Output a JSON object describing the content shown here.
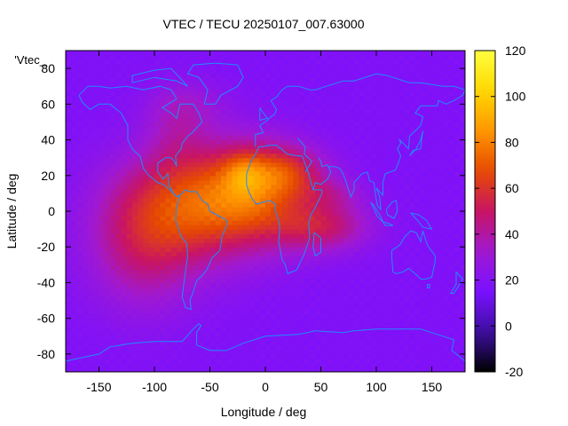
{
  "chart_data": {
    "type": "heatmap",
    "title": "VTEC / TECU 20250107_007.63000",
    "xlabel": "Longitude / deg",
    "ylabel": "Latitude / deg",
    "legend_label": "'Vtec_",
    "xlim": [
      -180,
      180
    ],
    "ylim": [
      -90,
      90
    ],
    "xticks": [
      -150,
      -100,
      -50,
      0,
      50,
      100,
      150
    ],
    "yticks": [
      -80,
      -60,
      -40,
      -20,
      0,
      20,
      40,
      60,
      80
    ],
    "colorbar": {
      "range": [
        -20,
        120
      ],
      "ticks": [
        -20,
        0,
        20,
        40,
        60,
        80,
        100,
        120
      ],
      "palette": [
        "#000000",
        "#3d0fa0",
        "#7a10ff",
        "#a019d2",
        "#c81464",
        "#e64a00",
        "#ff9600",
        "#ffd800",
        "#ffff40"
      ]
    },
    "field": {
      "background_tec": 18,
      "blobs": [
        {
          "lon": -55,
          "lat": 5,
          "sdlon": 50,
          "sdlat": 22,
          "amp": 48
        },
        {
          "lon": -10,
          "lat": 12,
          "sdlon": 30,
          "sdlat": 18,
          "amp": 26
        },
        {
          "lon": 20,
          "lat": 22,
          "sdlon": 25,
          "sdlat": 10,
          "amp": 28
        },
        {
          "lon": -20,
          "lat": 22,
          "sdlon": 12,
          "sdlat": 8,
          "amp": 16
        },
        {
          "lon": 50,
          "lat": -8,
          "sdlon": 30,
          "sdlat": 10,
          "amp": 30
        },
        {
          "lon": 60,
          "lat": 10,
          "sdlon": 20,
          "sdlat": 6,
          "amp": 12
        },
        {
          "lon": -110,
          "lat": -20,
          "sdlon": 35,
          "sdlat": 25,
          "amp": 24
        },
        {
          "lon": -80,
          "lat": 45,
          "sdlon": 20,
          "sdlat": 15,
          "amp": 10
        },
        {
          "lon": -70,
          "lat": 60,
          "sdlon": 25,
          "sdlat": 10,
          "amp": 10
        }
      ]
    },
    "coastlines": [
      [
        [
          -168,
          65
        ],
        [
          -160,
          70
        ],
        [
          -150,
          70
        ],
        [
          -140,
          69
        ],
        [
          -125,
          70
        ],
        [
          -110,
          68
        ],
        [
          -95,
          70
        ],
        [
          -85,
          68
        ],
        [
          -80,
          63
        ],
        [
          -93,
          58
        ],
        [
          -85,
          55
        ],
        [
          -80,
          52
        ],
        [
          -77,
          60
        ],
        [
          -65,
          60
        ],
        [
          -60,
          55
        ],
        [
          -57,
          50
        ],
        [
          -66,
          44
        ],
        [
          -70,
          42
        ],
        [
          -75,
          38
        ],
        [
          -76,
          35
        ],
        [
          -81,
          31
        ],
        [
          -80,
          25
        ],
        [
          -82,
          28
        ],
        [
          -85,
          30
        ],
        [
          -90,
          30
        ],
        [
          -97,
          27
        ],
        [
          -97,
          22
        ],
        [
          -92,
          18
        ],
        [
          -88,
          21
        ],
        [
          -87,
          15
        ],
        [
          -83,
          10
        ],
        [
          -80,
          8
        ],
        [
          -77,
          9
        ],
        [
          -78,
          7
        ],
        [
          -80,
          2
        ],
        [
          -81,
          -5
        ],
        [
          -76,
          -14
        ],
        [
          -71,
          -18
        ],
        [
          -70,
          -25
        ],
        [
          -73,
          -38
        ],
        [
          -75,
          -48
        ],
        [
          -72,
          -54
        ],
        [
          -67,
          -55
        ],
        [
          -68,
          -50
        ],
        [
          -65,
          -45
        ],
        [
          -62,
          -39
        ],
        [
          -57,
          -36
        ],
        [
          -53,
          -33
        ],
        [
          -48,
          -26
        ],
        [
          -41,
          -22
        ],
        [
          -39,
          -14
        ],
        [
          -35,
          -8
        ],
        [
          -35,
          -5
        ],
        [
          -44,
          -2
        ],
        [
          -50,
          0
        ],
        [
          -52,
          4
        ],
        [
          -57,
          6
        ],
        [
          -62,
          11
        ],
        [
          -68,
          11
        ],
        [
          -72,
          12
        ],
        [
          -77,
          9
        ]
      ],
      [
        [
          -80,
          8
        ],
        [
          -86,
          12
        ],
        [
          -92,
          15
        ],
        [
          -97,
          16
        ],
        [
          -105,
          20
        ],
        [
          -110,
          24
        ],
        [
          -113,
          31
        ],
        [
          -117,
          33
        ],
        [
          -120,
          35
        ],
        [
          -124,
          40
        ],
        [
          -124,
          48
        ],
        [
          -130,
          55
        ],
        [
          -140,
          60
        ],
        [
          -150,
          60
        ],
        [
          -158,
          57
        ],
        [
          -165,
          61
        ],
        [
          -168,
          65
        ]
      ],
      [
        [
          -55,
          60
        ],
        [
          -45,
          60
        ],
        [
          -40,
          65
        ],
        [
          -25,
          70
        ],
        [
          -20,
          75
        ],
        [
          -25,
          82
        ],
        [
          -45,
          83
        ],
        [
          -65,
          82
        ],
        [
          -70,
          77
        ],
        [
          -60,
          75
        ],
        [
          -52,
          68
        ],
        [
          -55,
          60
        ]
      ],
      [
        [
          -120,
          72
        ],
        [
          -100,
          75
        ],
        [
          -80,
          73
        ],
        [
          -70,
          70
        ],
        [
          -85,
          80
        ],
        [
          -100,
          79
        ],
        [
          -120,
          76
        ],
        [
          -120,
          72
        ]
      ],
      [
        [
          -17,
          15
        ],
        [
          -17,
          21
        ],
        [
          -13,
          28
        ],
        [
          -9,
          32
        ],
        [
          -6,
          36
        ],
        [
          5,
          37
        ],
        [
          10,
          37
        ],
        [
          20,
          32
        ],
        [
          30,
          31
        ],
        [
          33,
          31
        ],
        [
          35,
          28
        ],
        [
          39,
          21
        ],
        [
          43,
          12
        ],
        [
          51,
          12
        ],
        [
          51,
          10
        ],
        [
          45,
          2
        ],
        [
          41,
          -2
        ],
        [
          39,
          -7
        ],
        [
          40,
          -15
        ],
        [
          35,
          -24
        ],
        [
          32,
          -28
        ],
        [
          28,
          -33
        ],
        [
          20,
          -35
        ],
        [
          18,
          -30
        ],
        [
          15,
          -27
        ],
        [
          12,
          -17
        ],
        [
          13,
          -10
        ],
        [
          12,
          -5
        ],
        [
          9,
          0
        ],
        [
          9,
          4
        ],
        [
          4,
          6
        ],
        [
          -2,
          5
        ],
        [
          -8,
          4
        ],
        [
          -12,
          7
        ],
        [
          -15,
          11
        ],
        [
          -17,
          15
        ]
      ],
      [
        [
          -9,
          36
        ],
        [
          -9,
          43
        ],
        [
          -2,
          44
        ],
        [
          -5,
          48
        ],
        [
          2,
          51
        ],
        [
          5,
          53
        ],
        [
          8,
          54
        ],
        [
          10,
          57
        ],
        [
          5,
          62
        ],
        [
          10,
          64
        ],
        [
          15,
          68
        ],
        [
          20,
          70
        ],
        [
          30,
          70
        ],
        [
          40,
          68
        ],
        [
          45,
          68
        ],
        [
          55,
          70
        ],
        [
          70,
          73
        ],
        [
          80,
          73
        ],
        [
          100,
          77
        ],
        [
          110,
          76
        ],
        [
          130,
          72
        ],
        [
          140,
          72
        ],
        [
          160,
          70
        ],
        [
          170,
          70
        ],
        [
          180,
          68
        ]
      ],
      [
        [
          -5,
          58
        ],
        [
          -5,
          51
        ],
        [
          2,
          52
        ],
        [
          -3,
          56
        ],
        [
          -5,
          58
        ]
      ],
      [
        [
          29,
          41
        ],
        [
          36,
          36
        ],
        [
          35,
          32
        ],
        [
          42,
          28
        ],
        [
          36,
          22
        ]
      ],
      [
        [
          43,
          12
        ],
        [
          45,
          16
        ],
        [
          50,
          15
        ],
        [
          56,
          18
        ],
        [
          59,
          22
        ],
        [
          56,
          26
        ],
        [
          51,
          25
        ],
        [
          50,
          28
        ],
        [
          48,
          30
        ]
      ],
      [
        [
          57,
          25
        ],
        [
          62,
          25
        ],
        [
          67,
          24
        ],
        [
          70,
          21
        ],
        [
          73,
          16
        ],
        [
          77,
          8
        ],
        [
          80,
          12
        ],
        [
          80,
          16
        ],
        [
          87,
          21
        ],
        [
          92,
          22
        ],
        [
          94,
          17
        ],
        [
          98,
          16
        ],
        [
          99,
          10
        ],
        [
          101,
          3
        ],
        [
          104,
          1
        ],
        [
          103,
          8
        ],
        [
          100,
          13
        ],
        [
          106,
          9
        ],
        [
          106,
          16
        ],
        [
          108,
          21
        ],
        [
          117,
          23
        ],
        [
          120,
          27
        ],
        [
          122,
          31
        ],
        [
          119,
          35
        ],
        [
          122,
          38
        ],
        [
          121,
          40
        ],
        [
          126,
          37
        ],
        [
          129,
          35
        ],
        [
          130,
          42
        ],
        [
          140,
          48
        ],
        [
          142,
          53
        ],
        [
          135,
          55
        ],
        [
          140,
          59
        ],
        [
          155,
          59
        ],
        [
          156,
          62
        ],
        [
          163,
          60
        ],
        [
          170,
          62
        ],
        [
          178,
          65
        ],
        [
          180,
          68
        ]
      ],
      [
        [
          44,
          -12
        ],
        [
          50,
          -15
        ],
        [
          50,
          -23
        ],
        [
          45,
          -25
        ],
        [
          43,
          -20
        ],
        [
          44,
          -12
        ]
      ],
      [
        [
          95,
          5
        ],
        [
          98,
          3
        ],
        [
          104,
          -3
        ],
        [
          106,
          -6
        ],
        [
          101,
          -3
        ],
        [
          95,
          5
        ]
      ],
      [
        [
          106,
          -6
        ],
        [
          112,
          -7
        ],
        [
          115,
          -8
        ],
        [
          108,
          -8
        ],
        [
          106,
          -6
        ]
      ],
      [
        [
          109,
          1
        ],
        [
          114,
          5
        ],
        [
          118,
          6
        ],
        [
          119,
          0
        ],
        [
          116,
          -4
        ],
        [
          110,
          -2
        ],
        [
          109,
          1
        ]
      ],
      [
        [
          131,
          -1
        ],
        [
          138,
          -2
        ],
        [
          145,
          -5
        ],
        [
          150,
          -10
        ],
        [
          142,
          -9
        ],
        [
          137,
          -5
        ],
        [
          131,
          -1
        ]
      ],
      [
        [
          114,
          -22
        ],
        [
          114,
          -26
        ],
        [
          115,
          -34
        ],
        [
          118,
          -35
        ],
        [
          124,
          -34
        ],
        [
          129,
          -32
        ],
        [
          135,
          -35
        ],
        [
          140,
          -38
        ],
        [
          145,
          -38
        ],
        [
          150,
          -37
        ],
        [
          153,
          -28
        ],
        [
          153,
          -25
        ],
        [
          146,
          -19
        ],
        [
          142,
          -11
        ],
        [
          140,
          -17
        ],
        [
          136,
          -12
        ],
        [
          131,
          -11
        ],
        [
          126,
          -14
        ],
        [
          121,
          -19
        ],
        [
          114,
          -22
        ]
      ],
      [
        [
          146,
          -41
        ],
        [
          148,
          -41
        ],
        [
          148,
          -43
        ],
        [
          146,
          -43
        ],
        [
          146,
          -41
        ]
      ],
      [
        [
          172,
          -34
        ],
        [
          178,
          -38
        ],
        [
          175,
          -41
        ],
        [
          170,
          -46
        ],
        [
          167,
          -46
        ],
        [
          172,
          -41
        ],
        [
          172,
          -34
        ]
      ],
      [
        [
          130,
          31
        ],
        [
          133,
          34
        ],
        [
          140,
          35
        ],
        [
          141,
          41
        ],
        [
          142,
          45
        ],
        [
          140,
          40
        ],
        [
          136,
          35
        ],
        [
          130,
          31
        ]
      ],
      [
        [
          -180,
          -84
        ],
        [
          -150,
          -80
        ],
        [
          -140,
          -76
        ],
        [
          -120,
          -74
        ],
        [
          -100,
          -73
        ],
        [
          -75,
          -73
        ],
        [
          -65,
          -66
        ],
        [
          -60,
          -63
        ],
        [
          -58,
          -64
        ],
        [
          -62,
          -68
        ],
        [
          -62,
          -75
        ],
        [
          -50,
          -78
        ],
        [
          -35,
          -78
        ],
        [
          -20,
          -74
        ],
        [
          0,
          -70
        ],
        [
          30,
          -69
        ],
        [
          45,
          -67
        ],
        [
          70,
          -68
        ],
        [
          80,
          -67
        ],
        [
          100,
          -66
        ],
        [
          120,
          -66
        ],
        [
          140,
          -66
        ],
        [
          160,
          -70
        ],
        [
          170,
          -72
        ],
        [
          168,
          -78
        ],
        [
          180,
          -84
        ]
      ],
      [
        [
          -180,
          -90
        ],
        [
          180,
          -90
        ]
      ]
    ]
  }
}
